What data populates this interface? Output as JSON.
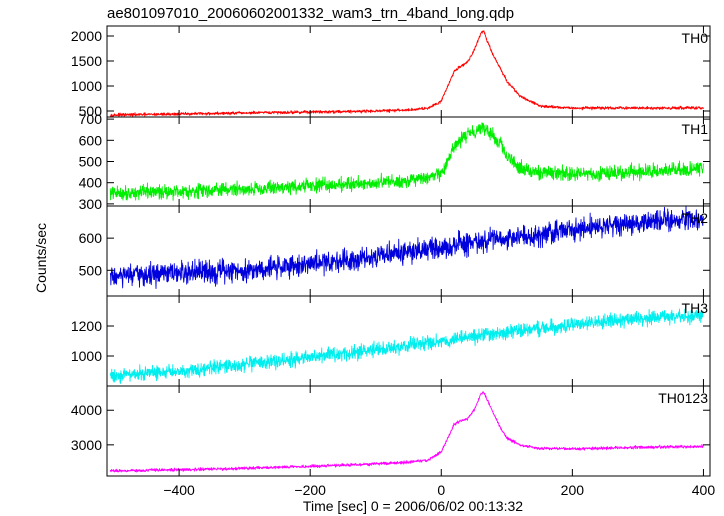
{
  "chart_data": {
    "type": "line",
    "title": "ae801097010_20060602001332_wam3_trn_4band_long.qdp",
    "xlabel": "Time [sec] 0 = 2006/06/02 00:13:32",
    "ylabel": "Counts/sec",
    "xlim": [
      -510,
      410
    ],
    "x_ticks": [
      -400,
      -200,
      0,
      200,
      400
    ],
    "x_tick_labels": [
      "−400",
      "−200",
      "0",
      "200",
      "400"
    ],
    "grid": false,
    "panels": [
      {
        "name": "TH0",
        "color": "#ff0000",
        "ylim": [
          380,
          2200
        ],
        "y_ticks": [
          500,
          1000,
          1500,
          2000
        ],
        "noise": 25,
        "x": [
          -500,
          -400,
          -300,
          -200,
          -100,
          -50,
          -20,
          0,
          10,
          20,
          30,
          40,
          50,
          60,
          65,
          70,
          80,
          90,
          100,
          120,
          150,
          200,
          300,
          400
        ],
        "y": [
          420,
          440,
          460,
          480,
          500,
          520,
          560,
          700,
          1000,
          1300,
          1400,
          1480,
          1700,
          2050,
          2100,
          1900,
          1600,
          1350,
          1100,
          800,
          600,
          560,
          560,
          560
        ]
      },
      {
        "name": "TH1",
        "color": "#00ee00",
        "ylim": [
          290,
          710
        ],
        "y_ticks": [
          300,
          400,
          500,
          600,
          700
        ],
        "noise": 28,
        "x": [
          -500,
          -400,
          -300,
          -200,
          -100,
          -50,
          -20,
          0,
          10,
          20,
          30,
          40,
          50,
          60,
          65,
          70,
          80,
          90,
          100,
          120,
          150,
          200,
          300,
          400
        ],
        "y": [
          350,
          360,
          370,
          385,
          400,
          410,
          420,
          440,
          500,
          570,
          600,
          630,
          640,
          670,
          660,
          650,
          620,
          580,
          520,
          470,
          450,
          440,
          450,
          470
        ]
      },
      {
        "name": "TH2",
        "color": "#0000dd",
        "ylim": [
          420,
          700
        ],
        "y_ticks": [
          500,
          600
        ],
        "noise": 30,
        "x": [
          -500,
          -300,
          -200,
          -100,
          0,
          100,
          200,
          300,
          400
        ],
        "y": [
          480,
          500,
          520,
          545,
          570,
          600,
          625,
          650,
          660
        ]
      },
      {
        "name": "TH3",
        "color": "#00eeee",
        "ylim": [
          800,
          1400
        ],
        "y_ticks": [
          1000,
          1200
        ],
        "noise": 40,
        "x": [
          -500,
          -400,
          -300,
          -200,
          -100,
          0,
          100,
          200,
          300,
          400
        ],
        "y": [
          870,
          900,
          940,
          990,
          1040,
          1100,
          1160,
          1210,
          1250,
          1270
        ]
      },
      {
        "name": "TH0123",
        "color": "#ff00ff",
        "ylim": [
          2100,
          4700
        ],
        "y_ticks": [
          3000,
          4000
        ],
        "noise": 35,
        "x": [
          -500,
          -400,
          -300,
          -200,
          -100,
          -50,
          -20,
          0,
          10,
          20,
          30,
          40,
          50,
          60,
          65,
          70,
          80,
          90,
          100,
          120,
          150,
          200,
          300,
          400
        ],
        "y": [
          2250,
          2280,
          2320,
          2380,
          2450,
          2500,
          2560,
          2800,
          3200,
          3600,
          3700,
          3750,
          4000,
          4450,
          4500,
          4300,
          3900,
          3500,
          3200,
          3000,
          2900,
          2880,
          2930,
          2960
        ]
      }
    ]
  }
}
